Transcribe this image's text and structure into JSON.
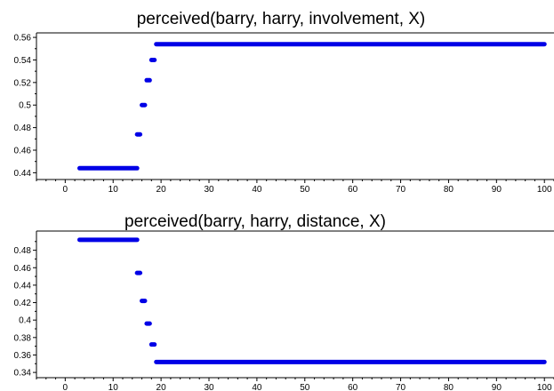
{
  "chart_data": [
    {
      "type": "scatter",
      "title": "perceived(barry, harry, involvement, X)",
      "xlabel": "",
      "ylabel": "",
      "xlim": [
        -6,
        102
      ],
      "ylim": [
        0.434,
        0.564
      ],
      "xticks": [
        0,
        10,
        20,
        30,
        40,
        50,
        60,
        70,
        80,
        90,
        100
      ],
      "xtick_labels": [
        "0",
        "10",
        "20",
        "30",
        "40",
        "50",
        "60",
        "70",
        "80",
        "90",
        "100"
      ],
      "yticks": [
        0.44,
        0.46,
        0.48,
        0.5,
        0.52,
        0.54,
        0.56
      ],
      "ytick_labels": [
        "0.44",
        "0.46",
        "0.48",
        "0.5",
        "0.52",
        "0.54",
        "0.56"
      ],
      "grid": false,
      "color": "#0000e6",
      "segments": [
        {
          "x": [
            3,
            15
          ],
          "y": 0.444
        },
        {
          "x": [
            15,
            16
          ],
          "y": 0.474
        },
        {
          "x": [
            16,
            17
          ],
          "y": 0.5
        },
        {
          "x": [
            17,
            18
          ],
          "y": 0.522
        },
        {
          "x": [
            18,
            19
          ],
          "y": 0.54
        },
        {
          "x": [
            19,
            100
          ],
          "y": 0.554
        }
      ]
    },
    {
      "type": "scatter",
      "title": "perceived(barry, harry, distance, X)",
      "xlabel": "",
      "ylabel": "",
      "xlim": [
        -6,
        102
      ],
      "ylim": [
        0.334,
        0.502
      ],
      "xticks": [
        0,
        10,
        20,
        30,
        40,
        50,
        60,
        70,
        80,
        90,
        100
      ],
      "xtick_labels": [
        "0",
        "10",
        "20",
        "30",
        "40",
        "50",
        "60",
        "70",
        "80",
        "90",
        "100"
      ],
      "yticks": [
        0.34,
        0.36,
        0.38,
        0.4,
        0.42,
        0.44,
        0.46,
        0.48
      ],
      "ytick_labels": [
        "0.34",
        "0.36",
        "0.38",
        "0.4",
        "0.42",
        "0.44",
        "0.46",
        "0.48"
      ],
      "grid": false,
      "color": "#0000e6",
      "segments": [
        {
          "x": [
            3,
            15
          ],
          "y": 0.492
        },
        {
          "x": [
            15,
            16
          ],
          "y": 0.454
        },
        {
          "x": [
            16,
            17
          ],
          "y": 0.422
        },
        {
          "x": [
            17,
            18
          ],
          "y": 0.396
        },
        {
          "x": [
            18,
            19
          ],
          "y": 0.372
        },
        {
          "x": [
            19,
            100
          ],
          "y": 0.352
        }
      ]
    }
  ]
}
